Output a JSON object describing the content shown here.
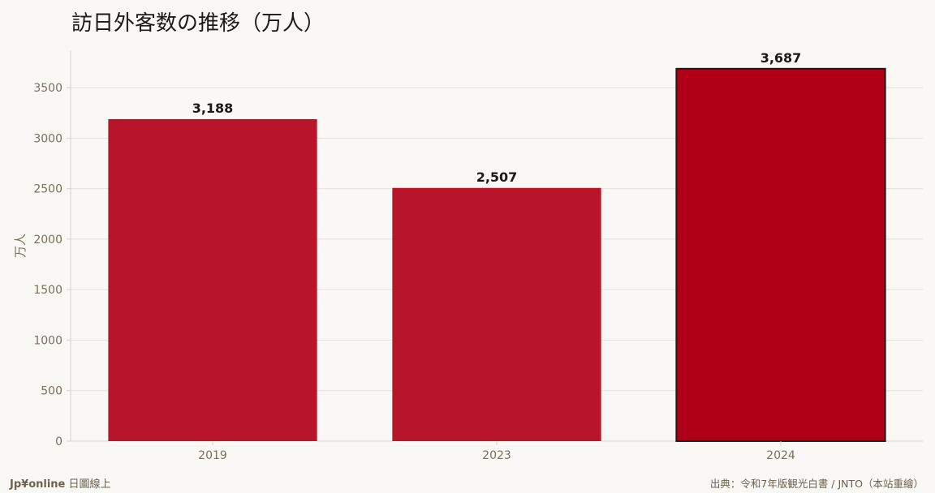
{
  "chart_data": {
    "type": "bar",
    "title": "訪日外客数の推移（万人）",
    "ylabel": "万人",
    "xlabel": "",
    "categories": [
      "2019",
      "2023",
      "2024"
    ],
    "values": [
      3188,
      2507,
      3687
    ],
    "value_labels": [
      "3,188",
      "2,507",
      "3,687"
    ],
    "ylim": [
      0,
      3870
    ],
    "yticks": [
      0,
      500,
      1000,
      1500,
      2000,
      2500,
      3000,
      3500
    ],
    "grid": true,
    "highlight_index": 2,
    "colors": {
      "bar": "#b8152b",
      "bar_highlight": "#b00018",
      "highlight_edge": "#1a1a1a",
      "grid": "#e4e0da",
      "axis": "#d6d2cc",
      "tick_label": "#7a6e5e",
      "value_label": "#1a1a1a"
    }
  },
  "footer": {
    "brand": "Jp¥online",
    "brand_suffix": " 日圖線上",
    "source": "出典：令和7年版観光白書 / JNTO（本站重繪）"
  }
}
